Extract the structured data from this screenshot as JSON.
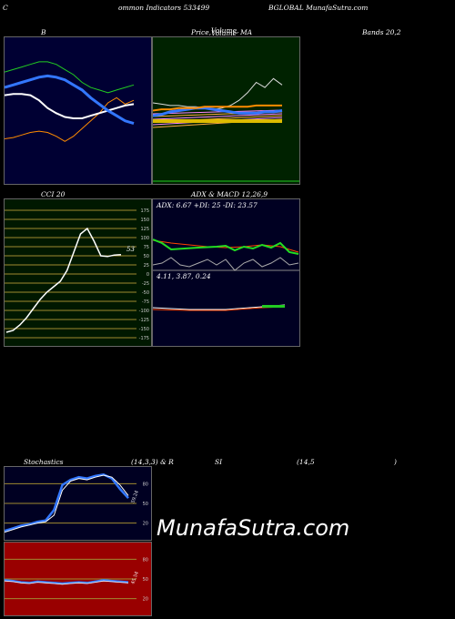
{
  "header": {
    "left_c": "C",
    "mid": "ommon  Indicators 533499",
    "right": "BGLOBAL  MunafaSutra.com"
  },
  "titles": {
    "bb": "B",
    "price_a": "Price,",
    "price_b": "Volume,",
    "price_c": "Volume",
    "price_d": "MA",
    "bands": "Bands 20,2",
    "cci": "CCI 20",
    "adx_title": "ADX  & MACD 12,26,9",
    "stoch_a": "Stochastics",
    "stoch_b": "(14,3,3) & R",
    "stoch_c": "SI",
    "stoch_d": "(14,5",
    "stoch_e": ")"
  },
  "labels": {
    "adx_line": "ADX: 6.67  +DI: 25  -DI: 23.57",
    "macd_line": "4.11,  3.87,  0.24",
    "cci_value": "53",
    "stoch_value": "59.24",
    "rsi_value": "45.54"
  },
  "watermark": "MunafaSutra.com",
  "colors": {
    "bb_bg": "#000033",
    "price_bg": "#002200",
    "cci_bg": "#001800",
    "adx_bg": "#000022",
    "stoch_bg": "#000022",
    "rsi_bg": "#990000"
  },
  "chart_data": [
    {
      "type": "line",
      "name": "bollinger",
      "series": [
        {
          "values": [
            28,
            29,
            31,
            33,
            34,
            33,
            30,
            26,
            30,
            36,
            42,
            48,
            56,
            60,
            55,
            58
          ]
        },
        {
          "values": [
            62,
            63,
            63,
            62,
            58,
            52,
            48,
            45,
            44,
            44,
            46,
            48,
            50,
            52,
            54,
            55
          ]
        },
        {
          "values": [
            68,
            70,
            72,
            74,
            76,
            77,
            76,
            74,
            70,
            66,
            60,
            55,
            50,
            46,
            42,
            40
          ]
        },
        {
          "values": [
            80,
            82,
            84,
            86,
            88,
            88,
            86,
            82,
            78,
            72,
            68,
            66,
            64,
            66,
            68,
            70
          ]
        }
      ]
    },
    {
      "type": "line",
      "name": "price-ma",
      "series": [
        {
          "values": [
            56,
            55,
            54,
            54,
            53,
            53,
            52,
            51,
            52,
            54,
            58,
            64,
            72,
            68,
            75,
            70
          ]
        },
        {
          "values": [
            46,
            47,
            49,
            50,
            51,
            52,
            52,
            51,
            50,
            49,
            48,
            48,
            48,
            49,
            49,
            50
          ]
        },
        {
          "values": [
            50,
            51,
            51,
            52,
            52,
            52,
            53,
            53,
            53,
            53,
            53,
            53,
            54,
            54,
            54,
            54
          ]
        }
      ]
    },
    {
      "type": "line",
      "name": "cci",
      "yticks": [
        "175",
        "150",
        "125",
        "100",
        "75",
        "50",
        "25",
        "0",
        "-25",
        "-50",
        "-75",
        "-100",
        "-125",
        "-150",
        "-175"
      ],
      "values": [
        -160,
        -155,
        -140,
        -120,
        -95,
        -70,
        -50,
        -35,
        -20,
        10,
        60,
        110,
        125,
        90,
        50,
        48,
        52,
        53
      ]
    },
    {
      "type": "line",
      "name": "stochastics",
      "yticks": [
        "80",
        "50",
        "20"
      ],
      "series": [
        {
          "values": [
            8,
            12,
            16,
            18,
            22,
            24,
            40,
            78,
            86,
            90,
            88,
            92,
            94,
            88,
            72,
            58
          ]
        },
        {
          "values": [
            6,
            10,
            14,
            17,
            20,
            22,
            32,
            70,
            84,
            88,
            86,
            90,
            93,
            90,
            78,
            62
          ]
        }
      ]
    },
    {
      "type": "line",
      "name": "rsi",
      "yticks": [
        "80",
        "50",
        "20"
      ],
      "values": [
        48,
        47,
        45,
        44,
        46,
        45,
        44,
        43,
        44,
        45,
        44,
        46,
        48,
        47,
        46,
        45
      ]
    }
  ]
}
